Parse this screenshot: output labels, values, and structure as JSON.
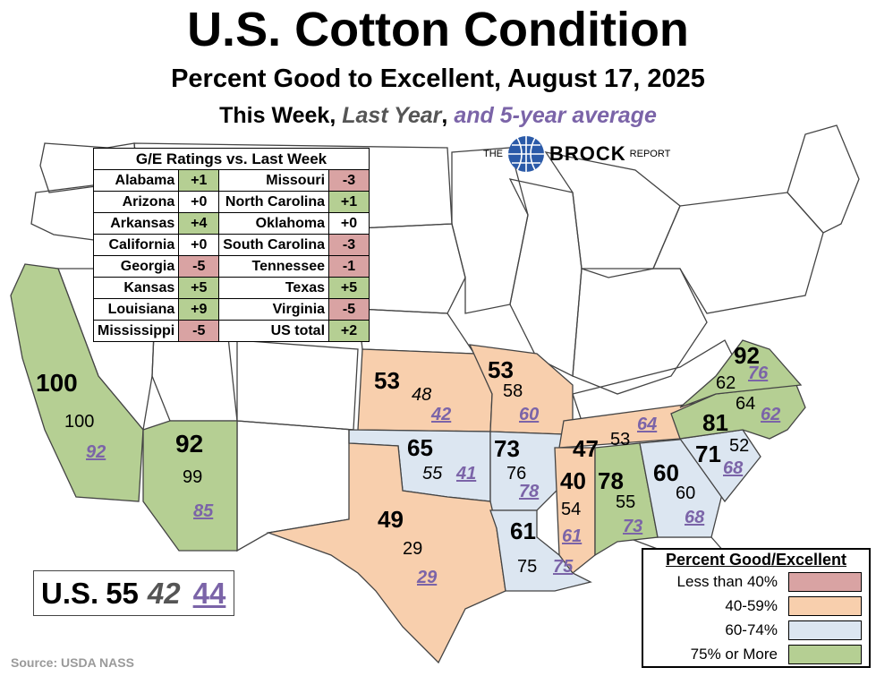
{
  "title": "U.S. Cotton Condition",
  "subtitle": "Percent Good to Excellent, August 17, 2025",
  "series_line": {
    "this_week": "This Week",
    "sep1": ", ",
    "last_year": "Last Year",
    "sep2": ", ",
    "avg": "and 5-year average"
  },
  "brand": {
    "prefix": "THE",
    "name": "BROCK",
    "suffix": "REPORT"
  },
  "colors": {
    "lt40": "#d9a3a3",
    "40to59": "#f8cfad",
    "60to74": "#dce6f1",
    "75plus": "#b5cf93",
    "last_year": "#555555",
    "avg": "#7b64a8",
    "border": "#444444"
  },
  "table": {
    "title": "G/E Ratings vs. Last Week",
    "left": [
      {
        "state": "Alabama",
        "change": "+1",
        "sign": "pos"
      },
      {
        "state": "Arizona",
        "change": "+0",
        "sign": "zero"
      },
      {
        "state": "Arkansas",
        "change": "+4",
        "sign": "pos"
      },
      {
        "state": "California",
        "change": "+0",
        "sign": "zero"
      },
      {
        "state": "Georgia",
        "change": "-5",
        "sign": "neg"
      },
      {
        "state": "Kansas",
        "change": "+5",
        "sign": "pos"
      },
      {
        "state": "Louisiana",
        "change": "+9",
        "sign": "pos"
      },
      {
        "state": "Mississippi",
        "change": "-5",
        "sign": "neg"
      }
    ],
    "right": [
      {
        "state": "Missouri",
        "change": "-3",
        "sign": "neg"
      },
      {
        "state": "North Carolina",
        "change": "+1",
        "sign": "pos"
      },
      {
        "state": "Oklahoma",
        "change": "+0",
        "sign": "zero"
      },
      {
        "state": "South Carolina",
        "change": "-3",
        "sign": "neg"
      },
      {
        "state": "Tennessee",
        "change": "-1",
        "sign": "neg"
      },
      {
        "state": "Texas",
        "change": "+5",
        "sign": "pos"
      },
      {
        "state": "Virginia",
        "change": "-5",
        "sign": "neg"
      },
      {
        "state": "US total",
        "change": "+2",
        "sign": "pos"
      }
    ]
  },
  "states": [
    {
      "id": "CA",
      "this_week": "100",
      "last_year": "100",
      "avg": "92",
      "category": "75plus"
    },
    {
      "id": "AZ",
      "this_week": "92",
      "last_year": "99",
      "avg": "85",
      "category": "75plus"
    },
    {
      "id": "KS",
      "this_week": "53",
      "last_year": "48",
      "avg": "42",
      "category": "40to59"
    },
    {
      "id": "MO",
      "this_week": "53",
      "last_year": "58",
      "avg": "60",
      "category": "40to59"
    },
    {
      "id": "OK",
      "this_week": "65",
      "last_year": "55",
      "avg": "41",
      "category": "60to74"
    },
    {
      "id": "AR",
      "this_week": "73",
      "last_year": "76",
      "avg": "78",
      "category": "60to74"
    },
    {
      "id": "TN",
      "this_week": "47",
      "last_year": "53",
      "avg": "64",
      "category": "40to59"
    },
    {
      "id": "MS",
      "this_week": "40",
      "last_year": "54",
      "avg": "61",
      "category": "40to59"
    },
    {
      "id": "AL",
      "this_week": "78",
      "last_year": "55",
      "avg": "73",
      "category": "75plus"
    },
    {
      "id": "GA",
      "this_week": "60",
      "last_year": "60",
      "avg": "68",
      "category": "60to74"
    },
    {
      "id": "SC",
      "this_week": "71",
      "last_year": "52",
      "avg": "68",
      "category": "60to74"
    },
    {
      "id": "NC",
      "this_week": "81",
      "last_year": "64",
      "avg": "62",
      "category": "75plus"
    },
    {
      "id": "VA",
      "this_week": "92",
      "last_year": "62",
      "avg": "76",
      "category": "75plus"
    },
    {
      "id": "TX",
      "this_week": "49",
      "last_year": "29",
      "avg": "29",
      "category": "40to59"
    },
    {
      "id": "LA",
      "this_week": "61",
      "last_year": "75",
      "avg": "75",
      "category": "60to74"
    }
  ],
  "us_total": {
    "label": "U.S.",
    "this_week": "55",
    "last_year": "42",
    "avg": "44"
  },
  "legend": {
    "title": "Percent Good/Excellent",
    "items": [
      {
        "label": "Less than 40%",
        "category": "lt40"
      },
      {
        "label": "40-59%",
        "category": "40to59"
      },
      {
        "label": "60-74%",
        "category": "60to74"
      },
      {
        "label": "75% or More",
        "category": "75plus"
      }
    ]
  },
  "source": "Source: USDA NASS"
}
